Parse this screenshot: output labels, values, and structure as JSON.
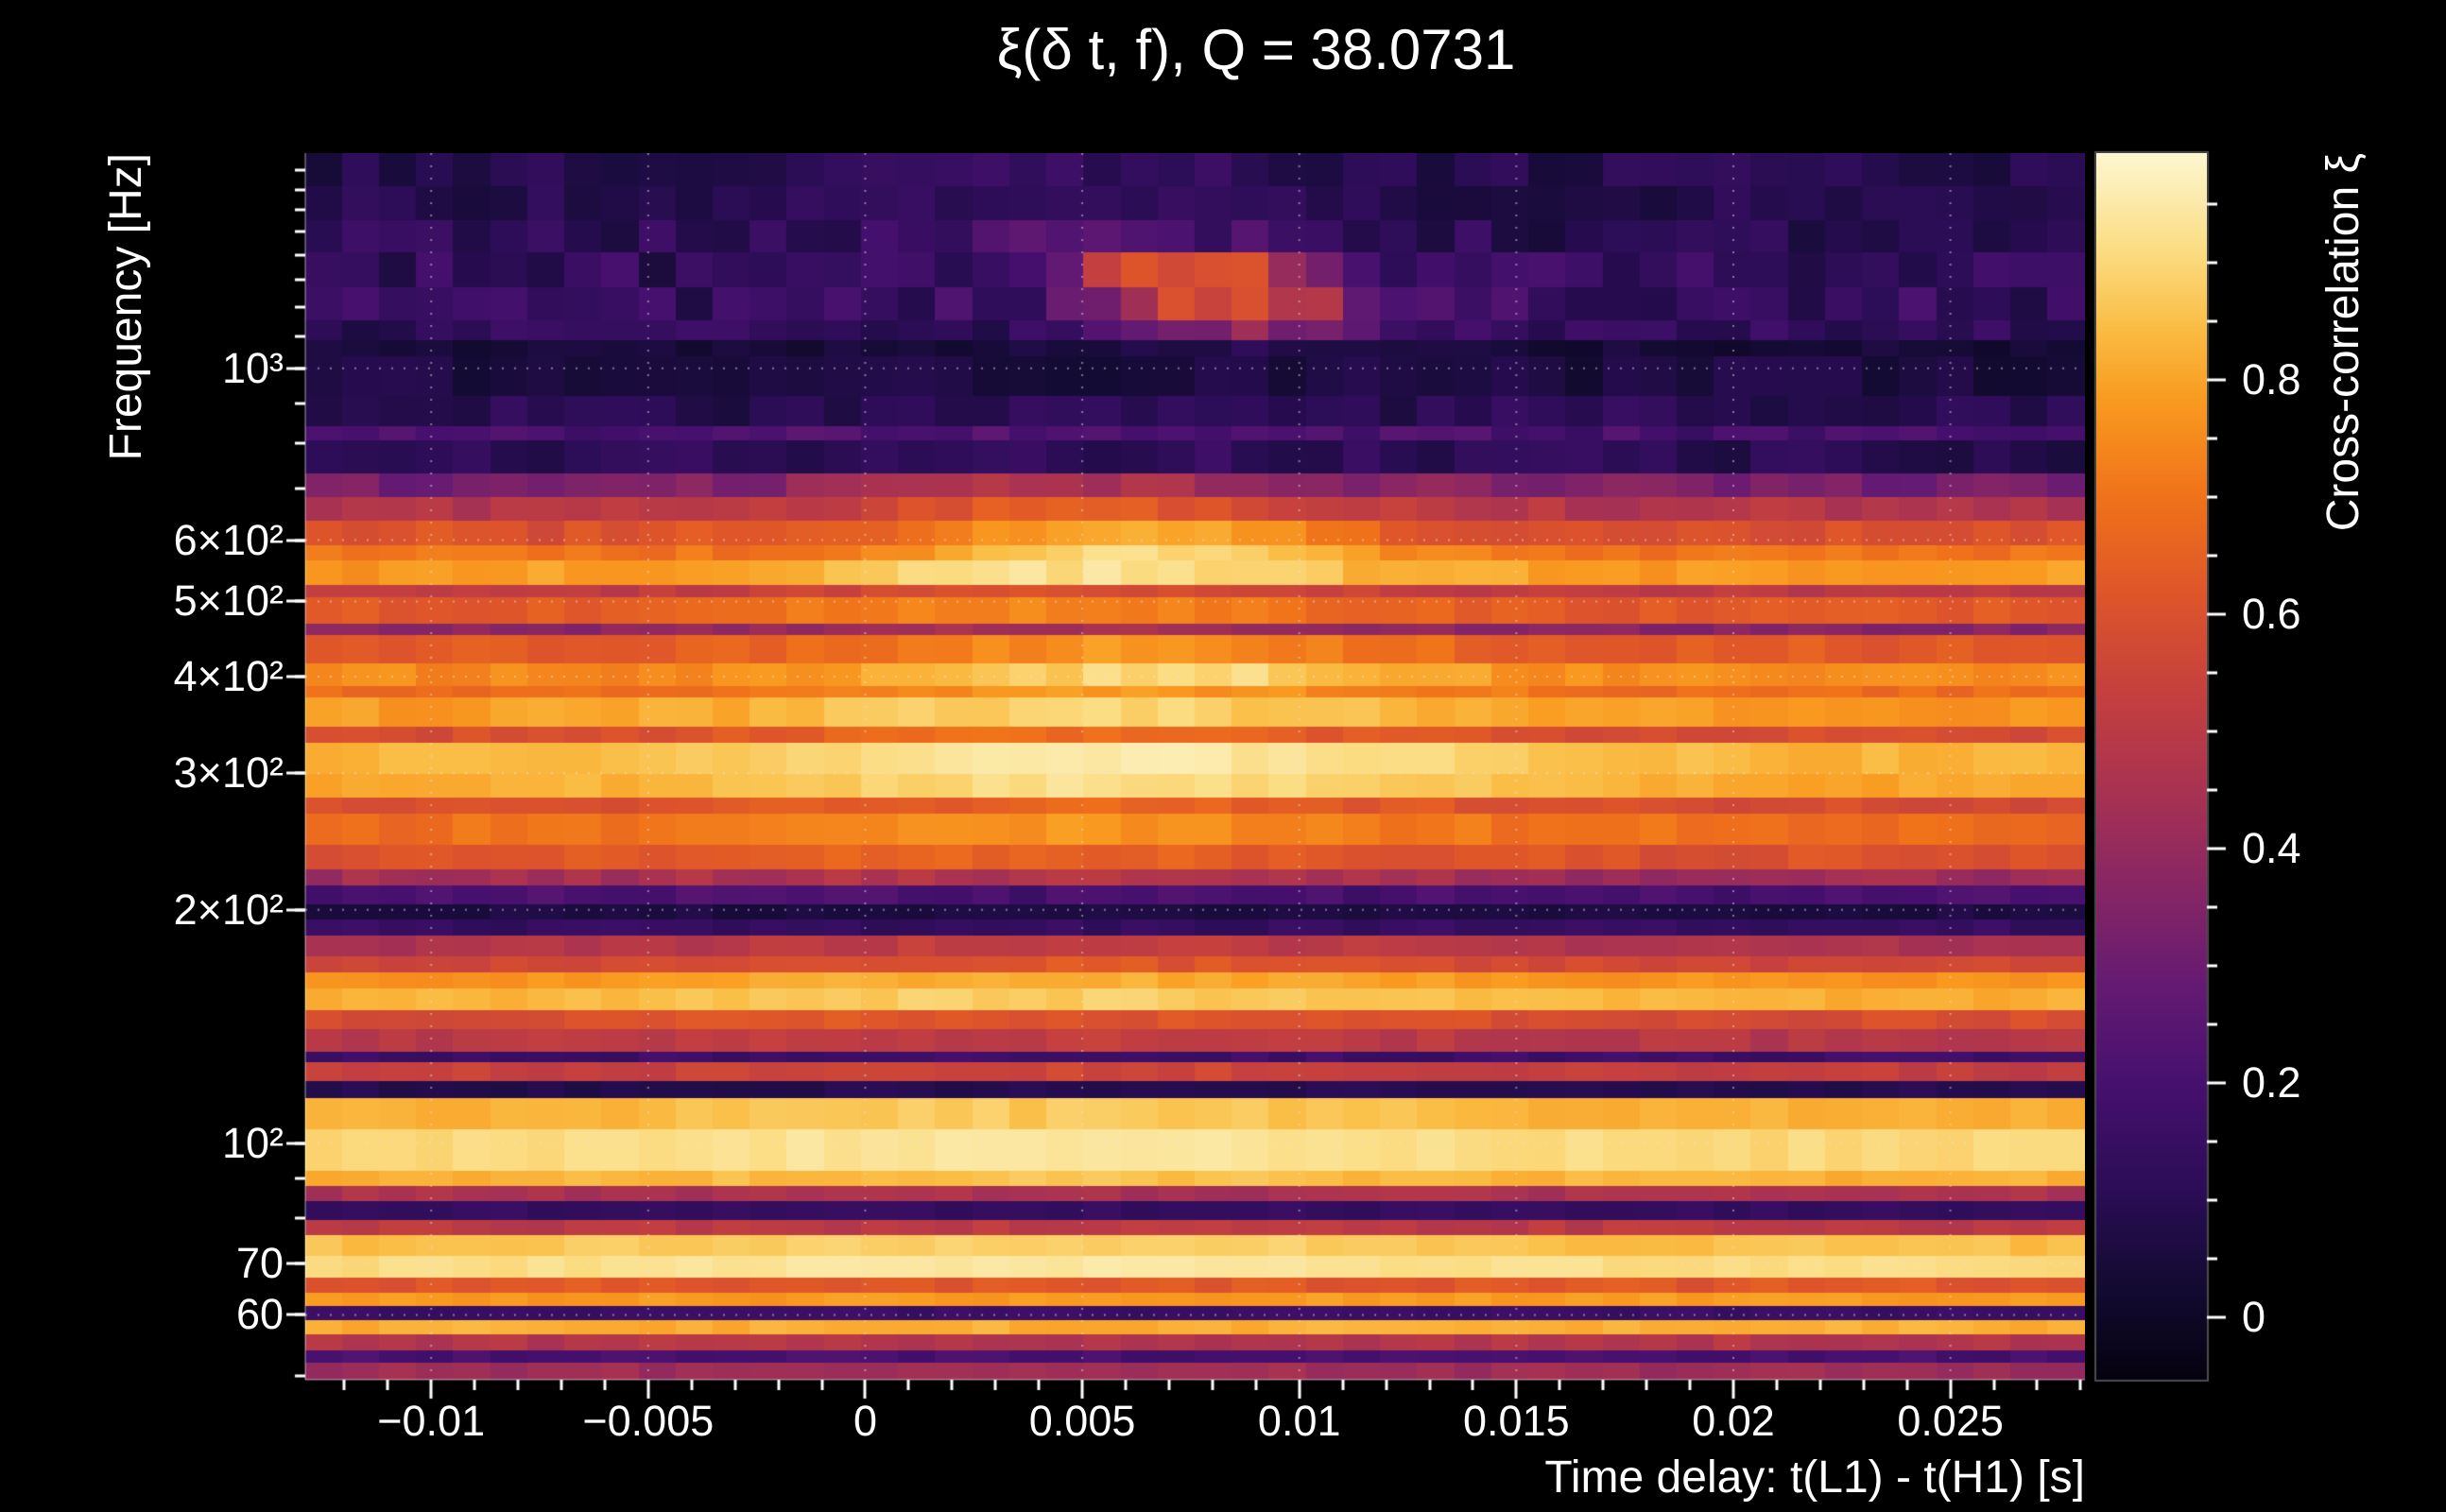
{
  "colors": {
    "background": "#000000",
    "text": "#ffffff"
  },
  "chart_data": {
    "type": "heatmap",
    "title": "ξ(δ t, f), Q = 38.0731",
    "Q": 38.0731,
    "xlabel": "Time delay: t(L1) - t(H1) [s]",
    "ylabel": "Frequency [Hz]",
    "colorbar_label": "Cross-correlation ξ",
    "x_scale": "linear",
    "y_scale": "log",
    "x_range": [
      -0.0129,
      0.0281
    ],
    "y_range": [
      49.5,
      1895
    ],
    "color_range": [
      -0.053,
      0.9935
    ],
    "x_ticks": [
      {
        "v": -0.01,
        "label": "−0.01"
      },
      {
        "v": -0.005,
        "label": "−0.005"
      },
      {
        "v": 0,
        "label": "0"
      },
      {
        "v": 0.005,
        "label": "0.005"
      },
      {
        "v": 0.01,
        "label": "0.01"
      },
      {
        "v": 0.015,
        "label": "0.015"
      },
      {
        "v": 0.02,
        "label": "0.02"
      },
      {
        "v": 0.025,
        "label": "0.025"
      }
    ],
    "x_minor_step": 0.001,
    "y_ticks": [
      {
        "v": 1000,
        "label": "10³"
      },
      {
        "v": 600,
        "label": "6×10²"
      },
      {
        "v": 500,
        "label": "5×10²"
      },
      {
        "v": 400,
        "label": "4×10²"
      },
      {
        "v": 300,
        "label": "3×10²"
      },
      {
        "v": 200,
        "label": "2×10²"
      },
      {
        "v": 100,
        "label": "10²"
      },
      {
        "v": 70,
        "label": "70"
      },
      {
        "v": 60,
        "label": "60"
      }
    ],
    "y_minor_ticks": [
      50,
      60,
      70,
      80,
      90,
      100,
      200,
      300,
      400,
      500,
      600,
      700,
      800,
      900,
      1000,
      1100,
      1200,
      1300,
      1400,
      1500,
      1600,
      1700,
      1800
    ],
    "colorbar_ticks": [
      {
        "v": 0.8,
        "label": "0.8"
      },
      {
        "v": 0.6,
        "label": "0.6"
      },
      {
        "v": 0.4,
        "label": "0.4"
      },
      {
        "v": 0.2,
        "label": "0.2"
      },
      {
        "v": 0,
        "label": "0"
      }
    ],
    "colorbar_minor_step": 0.05,
    "time_bins": 48,
    "bands_format": "[f_hi_hz, f_lo_hz, xi_base, xi_peak_amp, t_peak_s, sigma_s, noise]",
    "bands": [
      [
        1895,
        1549,
        0.09,
        0.05,
        0.004,
        0.006,
        0.05
      ],
      [
        1549,
        1409,
        0.11,
        0.12,
        0.005,
        0.005,
        0.07
      ],
      [
        1409,
        1270,
        0.13,
        0.52,
        0.0075,
        0.003,
        0.08
      ],
      [
        1270,
        1150,
        0.14,
        0.46,
        0.0085,
        0.0032,
        0.08
      ],
      [
        1150,
        1085,
        0.12,
        0.25,
        0.009,
        0.003,
        0.06
      ],
      [
        1085,
        1035,
        0.04,
        0.06,
        0.009,
        0.003,
        0.03
      ],
      [
        1035,
        920,
        0.06,
        0,
        0,
        1,
        0.04
      ],
      [
        920,
        840,
        0.1,
        0,
        0,
        1,
        0.05
      ],
      [
        840,
        805,
        0.19,
        0.03,
        0.005,
        0.008,
        0.05
      ],
      [
        805,
        730,
        0.1,
        0.03,
        0.005,
        0.008,
        0.05
      ],
      [
        730,
        680,
        0.33,
        0.14,
        0.005,
        0.006,
        0.05
      ],
      [
        680,
        635,
        0.48,
        0.16,
        0.005,
        0.006,
        0.04
      ],
      [
        635,
        590,
        0.6,
        0.24,
        0.006,
        0.005,
        0.04
      ],
      [
        590,
        564,
        0.7,
        0.22,
        0.0065,
        0.0048,
        0.03
      ],
      [
        564,
        525,
        0.78,
        0.14,
        0.005,
        0.007,
        0.03
      ],
      [
        525,
        506,
        0.5,
        0.1,
        0.005,
        0.007,
        0.03
      ],
      [
        506,
        468,
        0.62,
        0.12,
        0.004,
        0.008,
        0.03
      ],
      [
        468,
        452,
        0.36,
        0.08,
        0.004,
        0.008,
        0.03
      ],
      [
        452,
        415,
        0.63,
        0.14,
        0.006,
        0.007,
        0.03
      ],
      [
        415,
        388,
        0.75,
        0.16,
        0.007,
        0.006,
        0.03
      ],
      [
        388,
        375,
        0.68,
        0.1,
        0.006,
        0.008,
        0.03
      ],
      [
        375,
        344,
        0.78,
        0.12,
        0.005,
        0.008,
        0.03
      ],
      [
        344,
        328,
        0.58,
        0.1,
        0.004,
        0.008,
        0.03
      ],
      [
        328,
        299,
        0.82,
        0.13,
        0.006,
        0.01,
        0.02
      ],
      [
        299,
        279,
        0.8,
        0.12,
        0.006,
        0.01,
        0.02
      ],
      [
        279,
        266,
        0.58,
        0.08,
        0.005,
        0.009,
        0.03
      ],
      [
        266,
        242,
        0.68,
        0.1,
        0.004,
        0.009,
        0.03
      ],
      [
        242,
        225,
        0.6,
        0.06,
        0.002,
        0.01,
        0.03
      ],
      [
        225,
        215,
        0.42,
        0.05,
        0.002,
        0.01,
        0.04
      ],
      [
        215,
        203,
        0.2,
        0,
        0,
        1,
        0.04
      ],
      [
        203,
        194,
        0.06,
        0,
        0,
        1,
        0.02
      ],
      [
        194,
        185,
        0.14,
        0,
        0,
        1,
        0.03
      ],
      [
        185,
        174,
        0.46,
        0.06,
        0.004,
        0.01,
        0.03
      ],
      [
        174,
        166,
        0.56,
        0.06,
        0.004,
        0.01,
        0.03
      ],
      [
        166,
        158,
        0.76,
        0.06,
        0.004,
        0.01,
        0.02
      ],
      [
        158,
        148,
        0.82,
        0.06,
        0.004,
        0.01,
        0.02
      ],
      [
        148,
        140,
        0.58,
        0.04,
        0.004,
        0.01,
        0.03
      ],
      [
        140,
        131,
        0.48,
        0.04,
        0.004,
        0.01,
        0.03
      ],
      [
        131,
        127,
        0.17,
        0,
        0,
        1,
        0.03
      ],
      [
        127,
        120,
        0.52,
        0.04,
        0.004,
        0.01,
        0.03
      ],
      [
        120,
        114,
        0.09,
        0,
        0,
        1,
        0.02
      ],
      [
        114,
        104,
        0.82,
        0.05,
        0.004,
        0.01,
        0.02
      ],
      [
        104,
        92,
        0.9,
        0.04,
        0.004,
        0.01,
        0.015
      ],
      [
        92,
        88,
        0.82,
        0.04,
        0.004,
        0.01,
        0.02
      ],
      [
        88,
        84,
        0.45,
        0,
        0,
        1,
        0.03
      ],
      [
        84,
        79.5,
        0.14,
        0,
        0,
        1,
        0.02
      ],
      [
        79.5,
        76,
        0.5,
        0,
        0,
        1,
        0.03
      ],
      [
        76,
        71.5,
        0.85,
        0.04,
        0.004,
        0.01,
        0.02
      ],
      [
        71.5,
        67,
        0.91,
        0.03,
        0.004,
        0.01,
        0.015
      ],
      [
        67,
        64,
        0.62,
        0,
        0,
        1,
        0.03
      ],
      [
        64,
        61.5,
        0.78,
        0,
        0,
        1,
        0.02
      ],
      [
        61.5,
        59,
        0.16,
        0,
        0,
        1,
        0.02
      ],
      [
        59,
        56.5,
        0.82,
        0,
        0,
        1,
        0.02
      ],
      [
        56.5,
        54,
        0.48,
        0,
        0,
        1,
        0.03
      ],
      [
        54,
        52,
        0.2,
        0,
        0,
        1,
        0.03
      ],
      [
        52,
        49.5,
        0.42,
        0,
        0,
        1,
        0.03
      ]
    ],
    "colormap": [
      [
        0.0,
        5,
        2,
        15
      ],
      [
        0.08,
        20,
        11,
        52
      ],
      [
        0.16,
        45,
        13,
        88
      ],
      [
        0.24,
        70,
        16,
        110
      ],
      [
        0.32,
        100,
        26,
        115
      ],
      [
        0.4,
        135,
        38,
        100
      ],
      [
        0.48,
        168,
        50,
        82
      ],
      [
        0.56,
        197,
        64,
        62
      ],
      [
        0.64,
        222,
        85,
        42
      ],
      [
        0.72,
        240,
        114,
        26
      ],
      [
        0.8,
        249,
        155,
        32
      ],
      [
        0.86,
        250,
        190,
        70
      ],
      [
        0.92,
        251,
        220,
        130
      ],
      [
        1.0,
        252,
        247,
        208
      ]
    ],
    "grid": {
      "dotted": true,
      "color": "rgba(230,230,230,0.5)"
    }
  }
}
